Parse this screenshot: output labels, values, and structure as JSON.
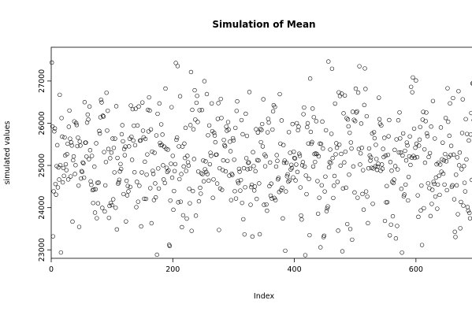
{
  "chart_data": {
    "type": "scatter",
    "title": "Simulation of Mean",
    "xlabel": "Index",
    "ylabel": "simulated values",
    "xlim": [
      0,
      700
    ],
    "ylim": [
      22800,
      27800
    ],
    "x_ticks": [
      0,
      200,
      400,
      600
    ],
    "y_ticks": [
      23000,
      24000,
      25000,
      26000,
      27000
    ],
    "x_tick_labels": [
      "0",
      "200",
      "400",
      "600"
    ],
    "y_tick_labels": [
      "23000",
      "24000",
      "25000",
      "26000",
      "27000"
    ],
    "n_points": 700,
    "center": 25200,
    "spread": 900,
    "min": 22850,
    "max": 27600,
    "marker": "open-circle",
    "grid": false,
    "legend": "none"
  }
}
